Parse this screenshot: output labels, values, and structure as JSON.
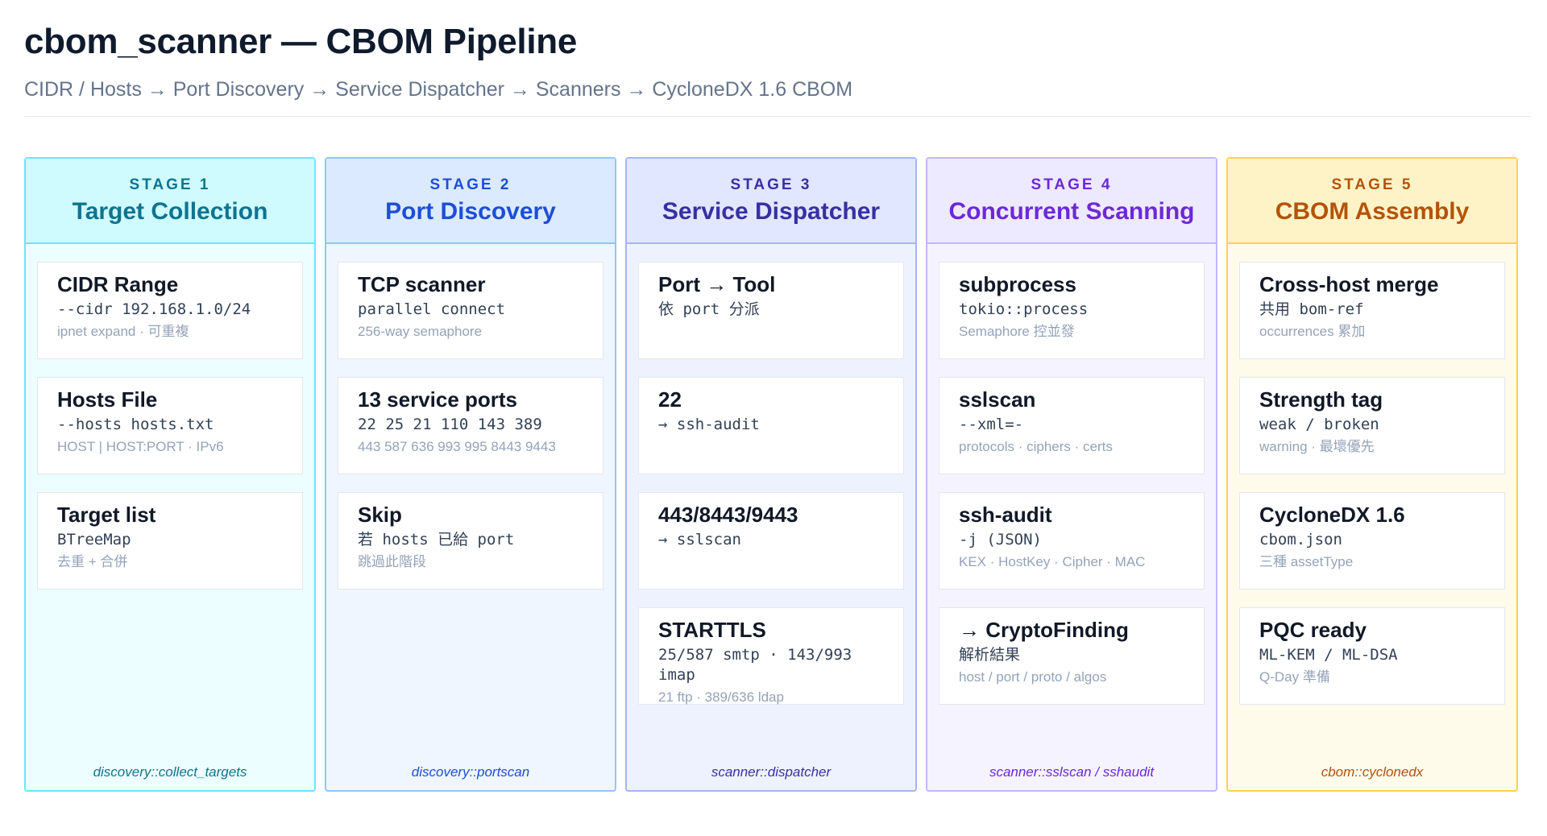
{
  "header": {
    "title": "cbom_scanner — CBOM Pipeline",
    "subtitle": "CIDR / Hosts → Port Discovery → Service Dispatcher → Scanners → CycloneDX 1.6 CBOM"
  },
  "stages": [
    {
      "label": "STAGE 1",
      "name": "Target Collection",
      "colors": {
        "bg": "#ecfeff",
        "head": "#cffafe",
        "border": "#67e8f9",
        "text": "#0e7490"
      },
      "cards": [
        {
          "title": "CIDR Range",
          "code": "--cidr 192.168.1.0/24",
          "note": "ipnet expand · 可重複"
        },
        {
          "title": "Hosts File",
          "code": "--hosts hosts.txt",
          "note": "HOST | HOST:PORT · IPv6"
        },
        {
          "title": "Target list",
          "code": "BTreeMap",
          "note": "去重 + 合併"
        }
      ],
      "footer": "discovery::collect_targets"
    },
    {
      "label": "STAGE 2",
      "name": "Port Discovery",
      "colors": {
        "bg": "#eff6ff",
        "head": "#dbeafe",
        "border": "#93c5fd",
        "text": "#1d4ed8"
      },
      "cards": [
        {
          "title": "TCP scanner",
          "code": "parallel connect",
          "note": "256-way semaphore"
        },
        {
          "title": "13 service ports",
          "code": "22 25 21 110 143 389",
          "note": "443 587 636 993 995 8443 9443"
        },
        {
          "title": "Skip",
          "code": "若 hosts 已給 port",
          "note": "跳過此階段"
        }
      ],
      "footer": "discovery::portscan"
    },
    {
      "label": "STAGE 3",
      "name": "Service Dispatcher",
      "colors": {
        "bg": "#eef2ff",
        "head": "#e0e7ff",
        "border": "#a5b4fc",
        "text": "#3730a3"
      },
      "cards": [
        {
          "title": "Port → Tool",
          "code": "依 port 分派",
          "note": ""
        },
        {
          "title": "22",
          "code": "→ ssh-audit",
          "note": ""
        },
        {
          "title": "443/8443/9443",
          "code": "→ sslscan",
          "note": ""
        },
        {
          "title": "STARTTLS",
          "code": "25/587 smtp · 143/993 imap",
          "note": "21 ftp · 389/636 ldap"
        }
      ],
      "footer": "scanner::dispatcher"
    },
    {
      "label": "STAGE 4",
      "name": "Concurrent Scanning",
      "colors": {
        "bg": "#f5f3ff",
        "head": "#ede9fe",
        "border": "#c4b5fd",
        "text": "#6d28d9"
      },
      "cards": [
        {
          "title": "subprocess",
          "code": "tokio::process",
          "note": "Semaphore 控並發"
        },
        {
          "title": "sslscan",
          "code": "--xml=-",
          "note": "protocols · ciphers · certs"
        },
        {
          "title": "ssh-audit",
          "code": "-j (JSON)",
          "note": "KEX · HostKey · Cipher · MAC"
        },
        {
          "title": "→ CryptoFinding",
          "code": "解析結果",
          "note": "host / port / proto / algos"
        }
      ],
      "footer": "scanner::sslscan / sshaudit"
    },
    {
      "label": "STAGE 5",
      "name": "CBOM Assembly",
      "colors": {
        "bg": "#fffbeb",
        "head": "#fef3c7",
        "border": "#fcd34d",
        "text": "#b45309"
      },
      "cards": [
        {
          "title": "Cross-host merge",
          "code": "共用 bom-ref",
          "note": "occurrences 累加"
        },
        {
          "title": "Strength tag",
          "code": "weak / broken",
          "note": "warning · 最壞優先"
        },
        {
          "title": "CycloneDX 1.6",
          "code": "cbom.json",
          "note": "三種 assetType"
        },
        {
          "title": "PQC ready",
          "code": "ML-KEM / ML-DSA",
          "note": "Q-Day 準備"
        }
      ],
      "footer": "cbom::cyclonedx"
    }
  ]
}
